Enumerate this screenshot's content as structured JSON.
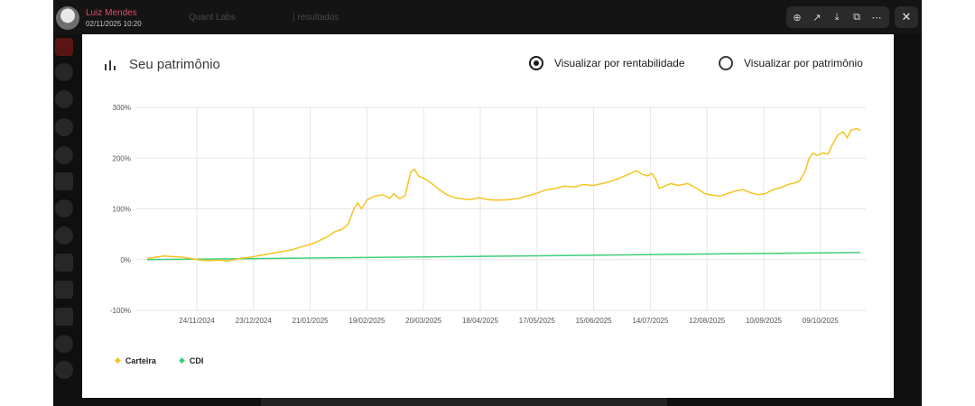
{
  "viewer": {
    "user": {
      "name": "Luiz Mendes",
      "date": "02/11/2025 10:20"
    },
    "background": {
      "doc_title": "Quant Labs",
      "results_label": "| resultados"
    },
    "toolbar": [
      {
        "name": "zoom-in-icon",
        "glyph": "⊕"
      },
      {
        "name": "share-icon",
        "glyph": "↗"
      },
      {
        "name": "download-icon",
        "glyph": "⤓"
      },
      {
        "name": "open-external-icon",
        "glyph": "⧉"
      },
      {
        "name": "more-icon",
        "glyph": "⋯"
      }
    ],
    "close_glyph": "✕"
  },
  "card": {
    "title": "Seu patrimônio",
    "options": [
      {
        "label": "Visualizar por rentabilidade",
        "selected": true
      },
      {
        "label": "Visualizar por patrimônio",
        "selected": false
      }
    ]
  },
  "legend": [
    {
      "label": "Carteira",
      "color": "#f5c324",
      "glyph": "◆"
    },
    {
      "label": "CDI",
      "color": "#3ecf7a",
      "glyph": "◆"
    }
  ],
  "chart_data": {
    "type": "line",
    "ylim": [
      -100,
      300
    ],
    "y_ticks": [
      "300%",
      "200%",
      "100%",
      "0%",
      "-100%"
    ],
    "x_ticks": [
      "24/11/2024",
      "23/12/2024",
      "21/01/2025",
      "19/02/2025",
      "20/03/2025",
      "18/04/2025",
      "17/05/2025",
      "15/06/2025",
      "14/07/2025",
      "12/08/2025",
      "10/09/2025",
      "09/10/2025"
    ],
    "series": [
      {
        "name": "Carteira",
        "color": "#f5c324",
        "points": [
          [
            0,
            2
          ],
          [
            5,
            5
          ],
          [
            9,
            7
          ],
          [
            13,
            6
          ],
          [
            18,
            5
          ],
          [
            22,
            3
          ],
          [
            28,
            -1
          ],
          [
            33,
            -2
          ],
          [
            38,
            -1
          ],
          [
            42,
            -3
          ],
          [
            46,
            0
          ],
          [
            50,
            3
          ],
          [
            55,
            5
          ],
          [
            59,
            8
          ],
          [
            64,
            11
          ],
          [
            68,
            14
          ],
          [
            73,
            17
          ],
          [
            77,
            20
          ],
          [
            81,
            25
          ],
          [
            86,
            30
          ],
          [
            90,
            36
          ],
          [
            95,
            45
          ],
          [
            99,
            55
          ],
          [
            103,
            60
          ],
          [
            106,
            70
          ],
          [
            109,
            100
          ],
          [
            111,
            112
          ],
          [
            113,
            100
          ],
          [
            116,
            118
          ],
          [
            120,
            125
          ],
          [
            124,
            128
          ],
          [
            128,
            121
          ],
          [
            130,
            130
          ],
          [
            133,
            120
          ],
          [
            136,
            126
          ],
          [
            139,
            173
          ],
          [
            141,
            178
          ],
          [
            143,
            165
          ],
          [
            146,
            160
          ],
          [
            150,
            150
          ],
          [
            154,
            138
          ],
          [
            158,
            128
          ],
          [
            162,
            122
          ],
          [
            166,
            120
          ],
          [
            170,
            118
          ],
          [
            175,
            122
          ],
          [
            180,
            118
          ],
          [
            185,
            117
          ],
          [
            190,
            118
          ],
          [
            195,
            120
          ],
          [
            200,
            125
          ],
          [
            205,
            130
          ],
          [
            210,
            137
          ],
          [
            215,
            140
          ],
          [
            220,
            145
          ],
          [
            225,
            143
          ],
          [
            230,
            148
          ],
          [
            235,
            146
          ],
          [
            240,
            150
          ],
          [
            245,
            155
          ],
          [
            250,
            162
          ],
          [
            255,
            170
          ],
          [
            258,
            175
          ],
          [
            261,
            168
          ],
          [
            264,
            165
          ],
          [
            266,
            170
          ],
          [
            268,
            160
          ],
          [
            270,
            140
          ],
          [
            273,
            145
          ],
          [
            276,
            150
          ],
          [
            280,
            146
          ],
          [
            285,
            150
          ],
          [
            290,
            140
          ],
          [
            294,
            130
          ],
          [
            298,
            127
          ],
          [
            302,
            125
          ],
          [
            306,
            130
          ],
          [
            310,
            135
          ],
          [
            314,
            138
          ],
          [
            318,
            132
          ],
          [
            322,
            128
          ],
          [
            326,
            130
          ],
          [
            330,
            138
          ],
          [
            334,
            142
          ],
          [
            338,
            148
          ],
          [
            342,
            152
          ],
          [
            344,
            155
          ],
          [
            347,
            175
          ],
          [
            349,
            200
          ],
          [
            351,
            210
          ],
          [
            353,
            205
          ],
          [
            356,
            210
          ],
          [
            359,
            208
          ],
          [
            361,
            225
          ],
          [
            364,
            245
          ],
          [
            367,
            252
          ],
          [
            369,
            240
          ],
          [
            371,
            255
          ],
          [
            374,
            258
          ],
          [
            376,
            255
          ]
        ]
      },
      {
        "name": "CDI",
        "color": "#3ecf7a",
        "points": [
          [
            0,
            0
          ],
          [
            376,
            14
          ]
        ]
      }
    ]
  }
}
